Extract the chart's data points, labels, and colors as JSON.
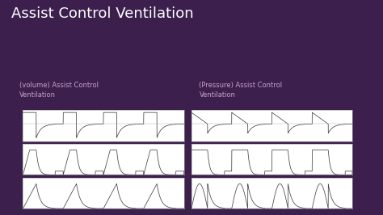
{
  "title": "Assist Control Ventilation",
  "subtitle_left": "(volume) Assist Control\nVentilation",
  "subtitle_right": "(Pressure) Assist Control\nVentilation",
  "bg_color": "#3d1f4e",
  "title_color": "#ffffff",
  "subtitle_color": "#c8a0c8",
  "chart_bg": "#ffffff",
  "line_color": "#444444",
  "accent_color": "#c0165a",
  "figsize": [
    4.74,
    2.66
  ],
  "dpi": 100
}
